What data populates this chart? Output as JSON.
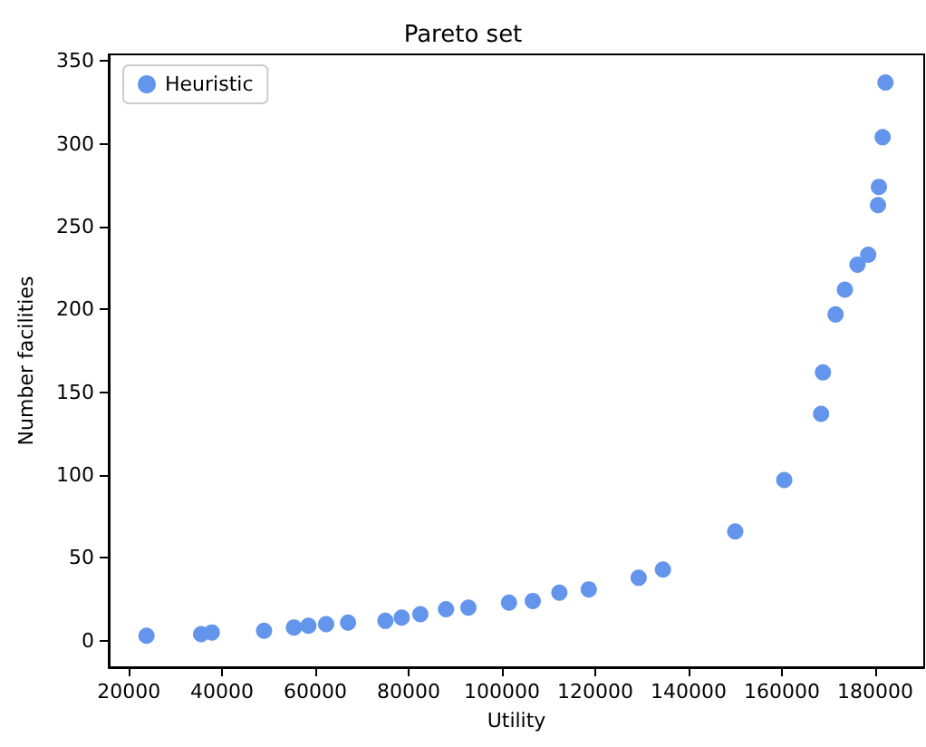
{
  "chart_data": {
    "type": "scatter",
    "title": "Pareto set",
    "xlabel": "Utility",
    "ylabel": "Number facilities",
    "series": [
      {
        "name": "Heuristic",
        "color": "#6495ed",
        "x": [
          23800,
          35500,
          37800,
          49000,
          55400,
          58500,
          62300,
          67000,
          75000,
          78500,
          82500,
          88000,
          92800,
          101500,
          106600,
          112300,
          118600,
          129300,
          134500,
          150000,
          160500,
          168400,
          168800,
          171500,
          173500,
          176200,
          178500,
          180600,
          180800,
          181600,
          182200
        ],
        "values": [
          3,
          4,
          5,
          6,
          8,
          9,
          10,
          11,
          12,
          14,
          16,
          19,
          20,
          23,
          24,
          29,
          31,
          38,
          43,
          66,
          97,
          137,
          162,
          197,
          212,
          227,
          233,
          263,
          274,
          304,
          337
        ]
      }
    ],
    "xlim": [
      15700,
      190500
    ],
    "xticks": [
      20000,
      40000,
      60000,
      80000,
      100000,
      120000,
      140000,
      160000,
      180000
    ],
    "ylim": [
      -16,
      354
    ],
    "yticks": [
      0,
      50,
      100,
      150,
      200,
      250,
      300,
      350
    ],
    "legend": "top left",
    "marker": "circle",
    "grid": false
  }
}
